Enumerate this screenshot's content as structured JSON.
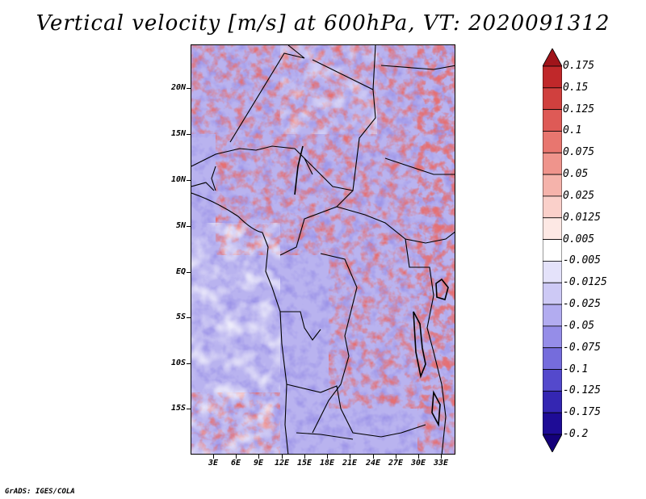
{
  "title": "Vertical velocity [m/s] at 600hPa, VT: 2020091312",
  "credit": "GrADS: IGES/COLA",
  "map": {
    "lat_labels": [
      "20N",
      "15N",
      "10N",
      "5N",
      "EQ",
      "5S",
      "10S",
      "15S"
    ],
    "lon_labels": [
      "3E",
      "6E",
      "9E",
      "12E",
      "15E",
      "18E",
      "21E",
      "24E",
      "27E",
      "30E",
      "33E"
    ]
  },
  "colorbar": {
    "labels": [
      "0.175",
      "0.15",
      "0.125",
      "0.1",
      "0.075",
      "0.05",
      "0.025",
      "0.0125",
      "0.005",
      "-0.005",
      "-0.0125",
      "-0.025",
      "-0.05",
      "-0.075",
      "-0.1",
      "-0.125",
      "-0.175",
      "-0.2"
    ],
    "colors": [
      "#a0141a",
      "#c0282a",
      "#d0403e",
      "#de5a56",
      "#e8766f",
      "#ef948c",
      "#f5b3ab",
      "#fad0ca",
      "#fde8e4",
      "#ffffff",
      "#e4e2fa",
      "#cdc9f5",
      "#b2acf0",
      "#958de8",
      "#756cdc",
      "#5449cc",
      "#3426b2",
      "#1e0c96",
      "#14007a"
    ]
  },
  "legend": {
    "positive_color": "#c0282a",
    "negative_color": "#5449cc",
    "neutral_color": "#ffffff"
  }
}
